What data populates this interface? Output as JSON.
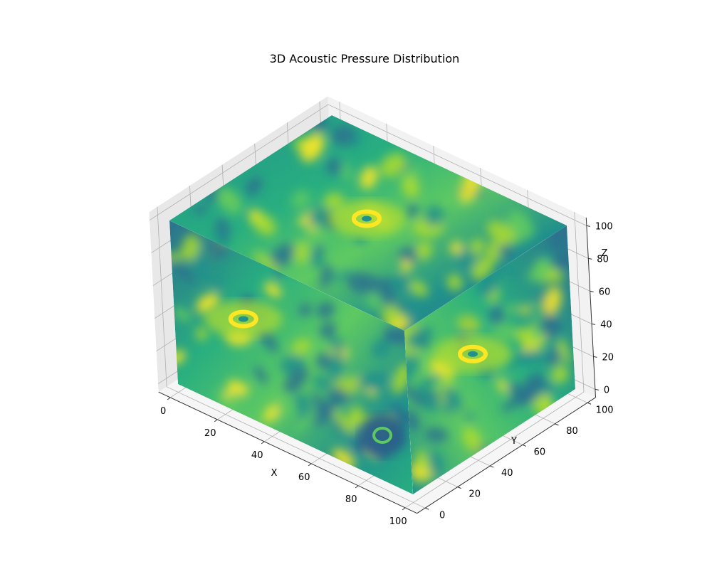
{
  "chart_data": {
    "type": "heatmap",
    "title": "3D Acoustic Pressure Distribution",
    "xlabel": "X",
    "ylabel": "Y",
    "zlabel": "Z",
    "xlim": [
      0,
      100
    ],
    "ylim": [
      0,
      100
    ],
    "zlim": [
      0,
      100
    ],
    "x_ticks": [
      "0",
      "20",
      "40",
      "60",
      "80",
      "100"
    ],
    "y_ticks": [
      "0",
      "20",
      "40",
      "60",
      "80",
      "100"
    ],
    "z_ticks": [
      "0",
      "20",
      "40",
      "60",
      "80",
      "100"
    ],
    "grid": true,
    "colormap": "viridis",
    "colormap_stops": [
      "#2c728e",
      "#21918c",
      "#28ae80",
      "#5ec962",
      "#addc30",
      "#fde725"
    ],
    "pane_color": "#f2f2f2",
    "grid_color": "#b0b0b0",
    "hot_spots": [
      {
        "face": "top",
        "u": 0.48,
        "v": 0.52,
        "kind": "ring-high"
      },
      {
        "face": "front",
        "u": 0.3,
        "v": 0.4,
        "kind": "ring-high"
      },
      {
        "face": "right",
        "u": 0.4,
        "v": 0.4,
        "kind": "ring-high"
      },
      {
        "face": "front",
        "u": 0.88,
        "v": 0.72,
        "kind": "ring-low"
      }
    ]
  }
}
